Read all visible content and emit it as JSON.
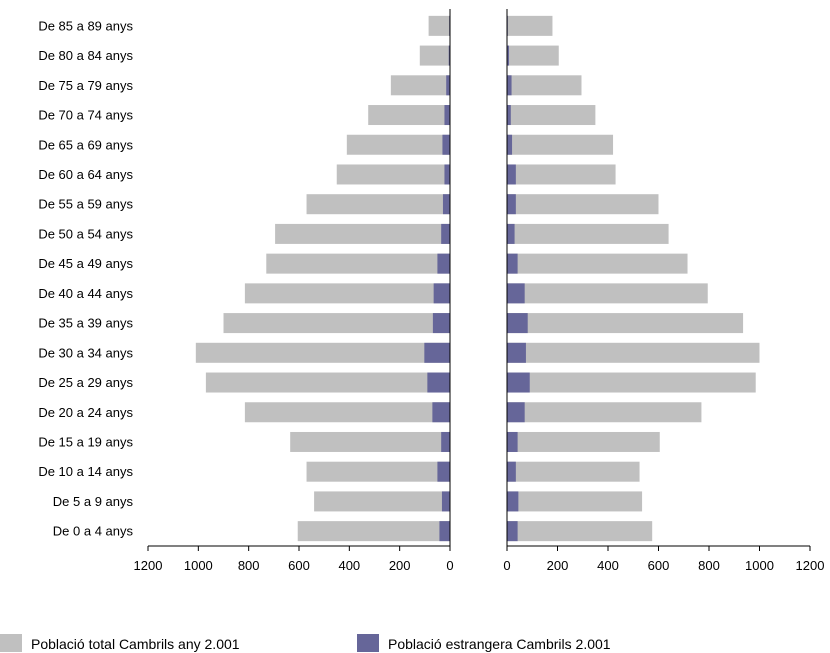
{
  "chart_data": {
    "type": "bar",
    "orientation": "horizontal",
    "layout": "population-pyramid",
    "categories": [
      "De 85 a 89 anys",
      "De 80 a 84 anys",
      "De 75 a 79 anys",
      "De 70 a 74 anys",
      "De 65 a 69 anys",
      "De 60 a 64 anys",
      "De 55 a 59 anys",
      "De 50 a 54 anys",
      "De 45 a 49 anys",
      "De 40 a 44 anys",
      "De 35 a 39 anys",
      "De 30 a 34 anys",
      "De 25 a 29 anys",
      "De 20 a 24 anys",
      "De 15 a 19 anys",
      "De 10 a 14 anys",
      "De 5 a 9 anys",
      "De 0 a 4 anys"
    ],
    "panels": [
      {
        "side": "left",
        "series": [
          {
            "name": "Població total Cambrils any 2.001",
            "color": "#c0c0c0",
            "values": [
              85,
              120,
              235,
              325,
              410,
              450,
              570,
              695,
              730,
              815,
              900,
              1010,
              970,
              815,
              635,
              570,
              540,
              605
            ]
          },
          {
            "name": "Població estrangera Cambrils 2.001",
            "color": "#666699",
            "values": [
              3,
              5,
              15,
              22,
              30,
              22,
              28,
              35,
              50,
              65,
              68,
              102,
              90,
              70,
              35,
              50,
              32,
              42
            ]
          }
        ]
      },
      {
        "side": "right",
        "series": [
          {
            "name": "Població total Cambrils any 2.001",
            "color": "#c0c0c0",
            "values": [
              180,
              205,
              295,
              350,
              420,
              430,
              600,
              640,
              715,
              795,
              935,
              1000,
              985,
              770,
              605,
              525,
              535,
              575
            ]
          },
          {
            "name": "Població estrangera Cambrils 2.001",
            "color": "#666699",
            "values": [
              3,
              8,
              18,
              15,
              20,
              35,
              35,
              30,
              42,
              70,
              82,
              75,
              90,
              70,
              42,
              35,
              45,
              42
            ]
          }
        ]
      }
    ],
    "xlim": [
      0,
      1200
    ],
    "xticks": [
      "1200",
      "1000",
      "800",
      "600",
      "400",
      "200",
      "0"
    ],
    "xticks_right": [
      "0",
      "200",
      "400",
      "600",
      "800",
      "1000",
      "1200"
    ],
    "title": "",
    "xlabel": "",
    "ylabel": "",
    "grid": false,
    "legend": {
      "position": "bottom-left",
      "items": [
        {
          "label": "Població total Cambrils any 2.001",
          "color": "#c0c0c0"
        },
        {
          "label": "Població estrangera Cambrils 2.001",
          "color": "#666699"
        }
      ]
    }
  }
}
